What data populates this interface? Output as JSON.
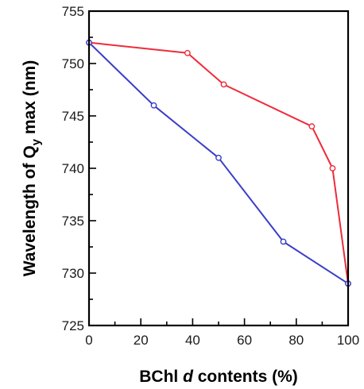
{
  "chart_data": {
    "type": "line",
    "title": "",
    "xlabel": {
      "prefix": "BChl ",
      "italic": "d",
      "suffix": " contents (%)"
    },
    "ylabel": {
      "prefix": "Wavelength of Q",
      "sub": "y",
      "suffix": " max (nm)"
    },
    "xlim": [
      0,
      100
    ],
    "ylim": [
      725,
      755
    ],
    "xticks": [
      0,
      20,
      40,
      60,
      80,
      100
    ],
    "yticks": [
      725,
      730,
      735,
      740,
      745,
      750,
      755
    ],
    "x_minor_step": 10,
    "y_minor_step": 2.5,
    "grid": false,
    "legend": "none",
    "series": [
      {
        "color": "#ee2b3b",
        "x": [
          0,
          38,
          52,
          86,
          94,
          100
        ],
        "y": [
          752,
          751,
          748,
          744,
          740,
          729
        ]
      },
      {
        "color": "#3a3ec7",
        "x": [
          0,
          25,
          50,
          75,
          100
        ],
        "y": [
          752,
          746,
          741,
          733,
          729
        ]
      }
    ]
  }
}
